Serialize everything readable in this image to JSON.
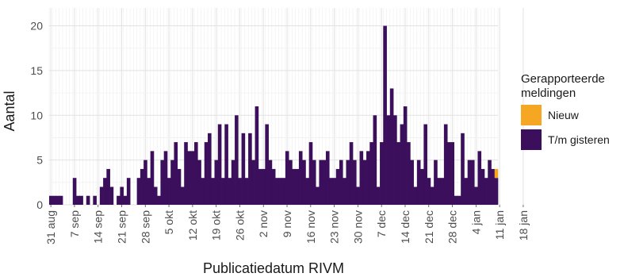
{
  "chart_data": {
    "type": "bar",
    "stacked": true,
    "xlabel": "Publicatiedatum RIVM",
    "ylabel": "Aantal",
    "ylim": [
      0,
      22
    ],
    "yticks": [
      0,
      5,
      10,
      15,
      20
    ],
    "start_date": "31 aug",
    "xtick_labels": [
      "31 aug",
      "7 sep",
      "14 sep",
      "21 sep",
      "28 sep",
      "5 okt",
      "12 okt",
      "19 okt",
      "26 okt",
      "2 nov",
      "9 nov",
      "16 nov",
      "23 nov",
      "30 nov",
      "7 dec",
      "14 dec",
      "21 dec",
      "28 dec",
      "4 jan",
      "11 jan",
      "18 jan"
    ],
    "xtick_days": [
      0,
      7,
      14,
      21,
      28,
      35,
      42,
      49,
      56,
      63,
      70,
      77,
      84,
      91,
      98,
      105,
      112,
      119,
      126,
      133,
      140
    ],
    "grid": true,
    "legend_position": "right",
    "legend": {
      "title": "Gerapporteerde meldingen",
      "title_lines": [
        "Gerapporteerde",
        "meldingen"
      ]
    },
    "series": [
      {
        "name": "T/m gisteren",
        "color": "#3B0F5C",
        "values": [
          1,
          1,
          1,
          1,
          0,
          0,
          0,
          3,
          1,
          1,
          0,
          1,
          0,
          1,
          0,
          2,
          3,
          4,
          2,
          0,
          1,
          2,
          1,
          3,
          0,
          0,
          3,
          4,
          5,
          3,
          6,
          2,
          1,
          5,
          6,
          3,
          5,
          7,
          4,
          2,
          7,
          6,
          6,
          7,
          5,
          3,
          7,
          8,
          3,
          5,
          9,
          3,
          9,
          3,
          5,
          10,
          3,
          8,
          3,
          8,
          5,
          11,
          4,
          4,
          9,
          5,
          4,
          3,
          3,
          3,
          6,
          5,
          4,
          4,
          6,
          5,
          3,
          7,
          5,
          2,
          5,
          5,
          6,
          3,
          3,
          4,
          5,
          3,
          5,
          7,
          5,
          2,
          6,
          5,
          6,
          7,
          10,
          2,
          7,
          20,
          10,
          13,
          10,
          7,
          9,
          11,
          7,
          5,
          2,
          5,
          4,
          9,
          3,
          2,
          5,
          3,
          3,
          9,
          7,
          7,
          1,
          1,
          8,
          3,
          5,
          5,
          2,
          6,
          4,
          3,
          5,
          4,
          3
        ]
      },
      {
        "name": "Nieuw",
        "color": "#F5A623",
        "values": [
          0,
          0,
          0,
          0,
          0,
          0,
          0,
          0,
          0,
          0,
          0,
          0,
          0,
          0,
          0,
          0,
          0,
          0,
          0,
          0,
          0,
          0,
          0,
          0,
          0,
          0,
          0,
          0,
          0,
          0,
          0,
          0,
          0,
          0,
          0,
          0,
          0,
          0,
          0,
          0,
          0,
          0,
          0,
          0,
          0,
          0,
          0,
          0,
          0,
          0,
          0,
          0,
          0,
          0,
          0,
          0,
          0,
          0,
          0,
          0,
          0,
          0,
          0,
          0,
          0,
          0,
          0,
          0,
          0,
          0,
          0,
          0,
          0,
          0,
          0,
          0,
          0,
          0,
          0,
          0,
          0,
          0,
          0,
          0,
          0,
          0,
          0,
          0,
          0,
          0,
          0,
          0,
          0,
          0,
          0,
          0,
          0,
          0,
          0,
          0,
          0,
          0,
          0,
          0,
          0,
          0,
          0,
          0,
          0,
          0,
          0,
          0,
          0,
          0,
          0,
          0,
          0,
          0,
          0,
          0,
          0,
          0,
          0,
          0,
          0,
          0,
          0,
          0,
          0,
          0,
          0,
          0,
          1
        ]
      }
    ]
  }
}
